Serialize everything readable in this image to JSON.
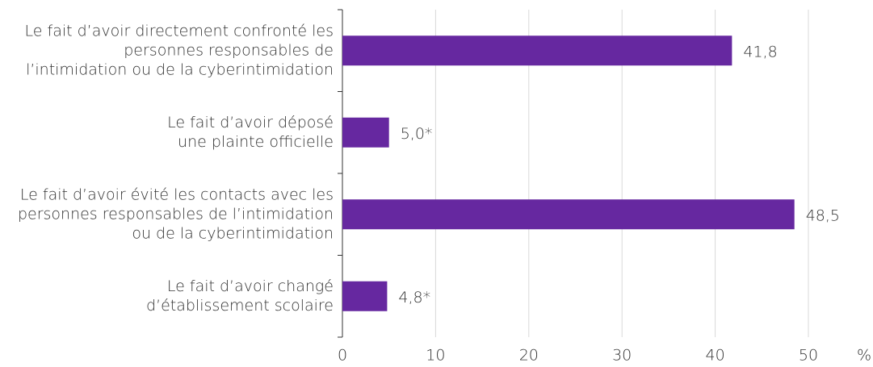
{
  "chart_data": {
    "type": "barh",
    "categories": [
      [
        "Le fait d’avoir directement confronté les",
        "personnes responsables de",
        "l’intimidation ou de la cyberintimidation"
      ],
      [
        "Le fait d’avoir déposé",
        "une plainte officielle"
      ],
      [
        "Le fait d’avoir évité les contacts avec les",
        "personnes responsables de l’intimidation",
        "ou de la cyberintimidation"
      ],
      [
        "Le fait d’avoir changé",
        "d’établissement scolaire"
      ]
    ],
    "values": [
      41.8,
      5.0,
      48.5,
      4.8
    ],
    "value_labels": [
      "41,8",
      "5,0*",
      "48,5",
      "4,8*"
    ],
    "color": "#6628a0",
    "xlim": [
      0,
      50
    ],
    "xticks": [
      0,
      10,
      20,
      30,
      40,
      50
    ],
    "x_label": "%",
    "grid": true
  }
}
